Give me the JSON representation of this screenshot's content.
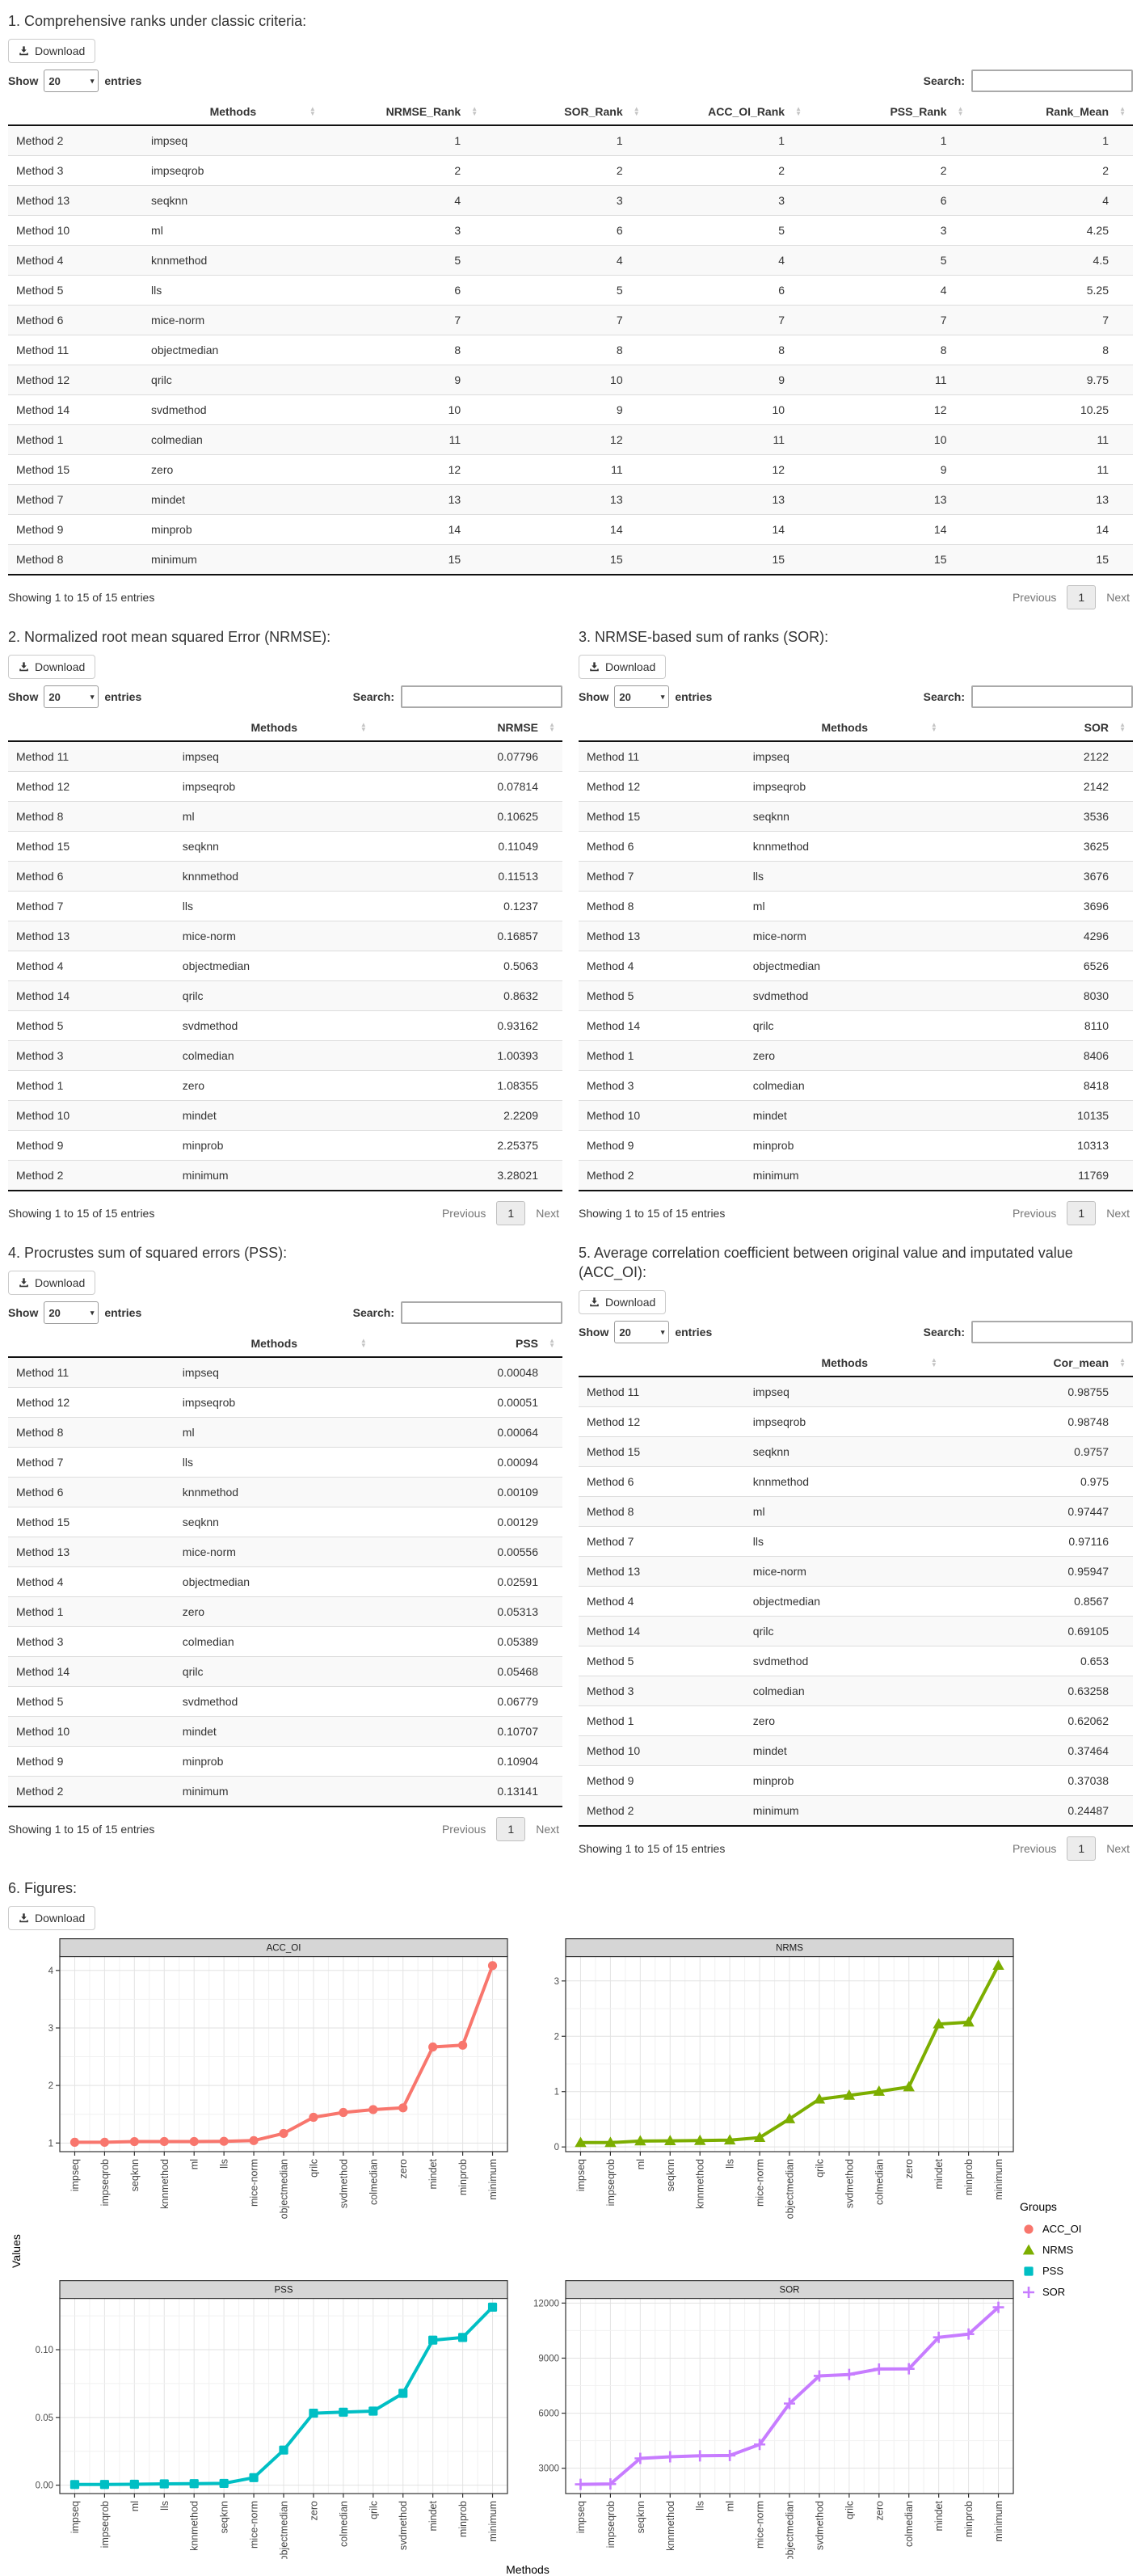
{
  "ui": {
    "download_label": "Download",
    "show_label": "Show",
    "page_length": "20",
    "entries_label": "entries",
    "search_label": "Search:",
    "search_value": "",
    "showing_text": "Showing 1 to 15 of 15 entries",
    "previous_label": "Previous",
    "current_page": "1",
    "next_label": "Next",
    "icons": {
      "download": "download-icon",
      "caret_down": "▾",
      "sort_asc": "▲",
      "sort_desc": "▼"
    }
  },
  "sections": [
    {
      "id": "ranks",
      "title": "1. Comprehensive ranks under classic criteria:",
      "columns": [
        "",
        "Methods",
        "NRMSE_Rank",
        "SOR_Rank",
        "ACC_OI_Rank",
        "PSS_Rank",
        "Rank_Mean"
      ],
      "rows": [
        [
          "Method 2",
          "impseq",
          "1",
          "1",
          "1",
          "1",
          "1"
        ],
        [
          "Method 3",
          "impseqrob",
          "2",
          "2",
          "2",
          "2",
          "2"
        ],
        [
          "Method 13",
          "seqknn",
          "4",
          "3",
          "3",
          "6",
          "4"
        ],
        [
          "Method 10",
          "ml",
          "3",
          "6",
          "5",
          "3",
          "4.25"
        ],
        [
          "Method 4",
          "knnmethod",
          "5",
          "4",
          "4",
          "5",
          "4.5"
        ],
        [
          "Method 5",
          "lls",
          "6",
          "5",
          "6",
          "4",
          "5.25"
        ],
        [
          "Method 6",
          "mice-norm",
          "7",
          "7",
          "7",
          "7",
          "7"
        ],
        [
          "Method 11",
          "objectmedian",
          "8",
          "8",
          "8",
          "8",
          "8"
        ],
        [
          "Method 12",
          "qrilc",
          "9",
          "10",
          "9",
          "11",
          "9.75"
        ],
        [
          "Method 14",
          "svdmethod",
          "10",
          "9",
          "10",
          "12",
          "10.25"
        ],
        [
          "Method 1",
          "colmedian",
          "11",
          "12",
          "11",
          "10",
          "11"
        ],
        [
          "Method 15",
          "zero",
          "12",
          "11",
          "12",
          "9",
          "11"
        ],
        [
          "Method 7",
          "mindet",
          "13",
          "13",
          "13",
          "13",
          "13"
        ],
        [
          "Method 9",
          "minprob",
          "14",
          "14",
          "14",
          "14",
          "14"
        ],
        [
          "Method 8",
          "minimum",
          "15",
          "15",
          "15",
          "15",
          "15"
        ]
      ]
    },
    {
      "id": "nrmse",
      "title": "2. Normalized root mean squared Error (NRMSE):",
      "columns": [
        "",
        "Methods",
        "NRMSE"
      ],
      "rows": [
        [
          "Method 11",
          "impseq",
          "0.07796"
        ],
        [
          "Method 12",
          "impseqrob",
          "0.07814"
        ],
        [
          "Method 8",
          "ml",
          "0.10625"
        ],
        [
          "Method 15",
          "seqknn",
          "0.11049"
        ],
        [
          "Method 6",
          "knnmethod",
          "0.11513"
        ],
        [
          "Method 7",
          "lls",
          "0.1237"
        ],
        [
          "Method 13",
          "mice-norm",
          "0.16857"
        ],
        [
          "Method 4",
          "objectmedian",
          "0.5063"
        ],
        [
          "Method 14",
          "qrilc",
          "0.8632"
        ],
        [
          "Method 5",
          "svdmethod",
          "0.93162"
        ],
        [
          "Method 3",
          "colmedian",
          "1.00393"
        ],
        [
          "Method 1",
          "zero",
          "1.08355"
        ],
        [
          "Method 10",
          "mindet",
          "2.2209"
        ],
        [
          "Method 9",
          "minprob",
          "2.25375"
        ],
        [
          "Method 2",
          "minimum",
          "3.28021"
        ]
      ]
    },
    {
      "id": "sor",
      "title": "3. NRMSE-based sum of ranks (SOR):",
      "columns": [
        "",
        "Methods",
        "SOR"
      ],
      "rows": [
        [
          "Method 11",
          "impseq",
          "2122"
        ],
        [
          "Method 12",
          "impseqrob",
          "2142"
        ],
        [
          "Method 15",
          "seqknn",
          "3536"
        ],
        [
          "Method 6",
          "knnmethod",
          "3625"
        ],
        [
          "Method 7",
          "lls",
          "3676"
        ],
        [
          "Method 8",
          "ml",
          "3696"
        ],
        [
          "Method 13",
          "mice-norm",
          "4296"
        ],
        [
          "Method 4",
          "objectmedian",
          "6526"
        ],
        [
          "Method 5",
          "svdmethod",
          "8030"
        ],
        [
          "Method 14",
          "qrilc",
          "8110"
        ],
        [
          "Method 1",
          "zero",
          "8406"
        ],
        [
          "Method 3",
          "colmedian",
          "8418"
        ],
        [
          "Method 10",
          "mindet",
          "10135"
        ],
        [
          "Method 9",
          "minprob",
          "10313"
        ],
        [
          "Method 2",
          "minimum",
          "11769"
        ]
      ]
    },
    {
      "id": "pss",
      "title": "4. Procrustes sum of squared errors (PSS):",
      "columns": [
        "",
        "Methods",
        "PSS"
      ],
      "rows": [
        [
          "Method 11",
          "impseq",
          "0.00048"
        ],
        [
          "Method 12",
          "impseqrob",
          "0.00051"
        ],
        [
          "Method 8",
          "ml",
          "0.00064"
        ],
        [
          "Method 7",
          "lls",
          "0.00094"
        ],
        [
          "Method 6",
          "knnmethod",
          "0.00109"
        ],
        [
          "Method 15",
          "seqknn",
          "0.00129"
        ],
        [
          "Method 13",
          "mice-norm",
          "0.00556"
        ],
        [
          "Method 4",
          "objectmedian",
          "0.02591"
        ],
        [
          "Method 1",
          "zero",
          "0.05313"
        ],
        [
          "Method 3",
          "colmedian",
          "0.05389"
        ],
        [
          "Method 14",
          "qrilc",
          "0.05468"
        ],
        [
          "Method 5",
          "svdmethod",
          "0.06779"
        ],
        [
          "Method 10",
          "mindet",
          "0.10707"
        ],
        [
          "Method 9",
          "minprob",
          "0.10904"
        ],
        [
          "Method 2",
          "minimum",
          "0.13141"
        ]
      ]
    },
    {
      "id": "accoi",
      "title": "5. Average correlation coefficient between original value and imputated value (ACC_OI):",
      "columns": [
        "",
        "Methods",
        "Cor_mean"
      ],
      "rows": [
        [
          "Method 11",
          "impseq",
          "0.98755"
        ],
        [
          "Method 12",
          "impseqrob",
          "0.98748"
        ],
        [
          "Method 15",
          "seqknn",
          "0.9757"
        ],
        [
          "Method 6",
          "knnmethod",
          "0.975"
        ],
        [
          "Method 8",
          "ml",
          "0.97447"
        ],
        [
          "Method 7",
          "lls",
          "0.97116"
        ],
        [
          "Method 13",
          "mice-norm",
          "0.95947"
        ],
        [
          "Method 4",
          "objectmedian",
          "0.8567"
        ],
        [
          "Method 14",
          "qrilc",
          "0.69105"
        ],
        [
          "Method 5",
          "svdmethod",
          "0.653"
        ],
        [
          "Method 3",
          "colmedian",
          "0.63258"
        ],
        [
          "Method 1",
          "zero",
          "0.62062"
        ],
        [
          "Method 10",
          "mindet",
          "0.37464"
        ],
        [
          "Method 9",
          "minprob",
          "0.37038"
        ],
        [
          "Method 2",
          "minimum",
          "0.24487"
        ]
      ]
    },
    {
      "id": "figures",
      "title": "6. Figures:"
    }
  ],
  "chart_data": {
    "type": "line",
    "ylabel": "Values",
    "xlabel": "Methods",
    "grid": true,
    "legend": {
      "title": "Groups",
      "position": "right",
      "items": [
        {
          "label": "ACC_OI",
          "color": "#F8766D",
          "marker": "circle"
        },
        {
          "label": "NRMS",
          "color": "#7CAE00",
          "marker": "triangle"
        },
        {
          "label": "PSS",
          "color": "#00BFC4",
          "marker": "square"
        },
        {
          "label": "SOR",
          "color": "#C77CFF",
          "marker": "plus"
        }
      ]
    },
    "panels": [
      {
        "strip_label": "ACC_OI",
        "color": "#F8766D",
        "marker": "circle",
        "categories": [
          "impseq",
          "impseqrob",
          "seqknn",
          "knnmethod",
          "ml",
          "lls",
          "mice-norm",
          "objectmedian",
          "qrilc",
          "svdmethod",
          "colmedian",
          "zero",
          "mindet",
          "minprob",
          "minimum"
        ],
        "values": [
          1.013,
          1.013,
          1.025,
          1.026,
          1.026,
          1.03,
          1.042,
          1.167,
          1.447,
          1.531,
          1.581,
          1.611,
          2.669,
          2.7,
          4.084
        ],
        "yticks": [
          1,
          2,
          3,
          4
        ],
        "ytick_labels": [
          "1",
          "2",
          "3",
          "4"
        ],
        "ydomain": [
          0.85,
          4.25
        ]
      },
      {
        "strip_label": "NRMS",
        "color": "#7CAE00",
        "marker": "triangle",
        "categories": [
          "impseq",
          "impseqrob",
          "ml",
          "seqknn",
          "knnmethod",
          "lls",
          "mice-norm",
          "objectmedian",
          "qrilc",
          "svdmethod",
          "colmedian",
          "zero",
          "mindet",
          "minprob",
          "minimum"
        ],
        "values": [
          0.07796,
          0.07814,
          0.10625,
          0.11049,
          0.11513,
          0.1237,
          0.16857,
          0.5063,
          0.8632,
          0.93162,
          1.00393,
          1.08355,
          2.2209,
          2.25375,
          3.28021
        ],
        "yticks": [
          0,
          1,
          2,
          3
        ],
        "ytick_labels": [
          "0",
          "1",
          "2",
          "3"
        ],
        "ydomain": [
          -0.085,
          3.45
        ]
      },
      {
        "strip_label": "PSS",
        "color": "#00BFC4",
        "marker": "square",
        "categories": [
          "impseq",
          "impseqrob",
          "ml",
          "lls",
          "knnmethod",
          "seqknn",
          "mice-norm",
          "objectmedian",
          "zero",
          "colmedian",
          "qrilc",
          "svdmethod",
          "mindet",
          "minprob",
          "minimum"
        ],
        "values": [
          0.00048,
          0.00051,
          0.00064,
          0.00094,
          0.00109,
          0.00129,
          0.00556,
          0.02591,
          0.05313,
          0.05389,
          0.05468,
          0.06779,
          0.10707,
          0.10904,
          0.13141
        ],
        "yticks": [
          0,
          0.05,
          0.1
        ],
        "ytick_labels": [
          "0.00",
          "0.05",
          "0.10"
        ],
        "ydomain": [
          -0.0062,
          0.1382
        ]
      },
      {
        "strip_label": "SOR",
        "color": "#C77CFF",
        "marker": "plus",
        "categories": [
          "impseq",
          "impseqrob",
          "seqknn",
          "knnmethod",
          "lls",
          "ml",
          "mice-norm",
          "objectmedian",
          "svdmethod",
          "qrilc",
          "zero",
          "colmedian",
          "mindet",
          "minprob",
          "minimum"
        ],
        "values": [
          2122,
          2142,
          3536,
          3625,
          3676,
          3696,
          4296,
          6526,
          8030,
          8110,
          8406,
          8418,
          10135,
          10313,
          11769
        ],
        "yticks": [
          3000,
          6000,
          9000,
          12000
        ],
        "ytick_labels": [
          "3000",
          "6000",
          "9000",
          "12000"
        ],
        "ydomain": [
          1620,
          12280
        ]
      }
    ]
  }
}
